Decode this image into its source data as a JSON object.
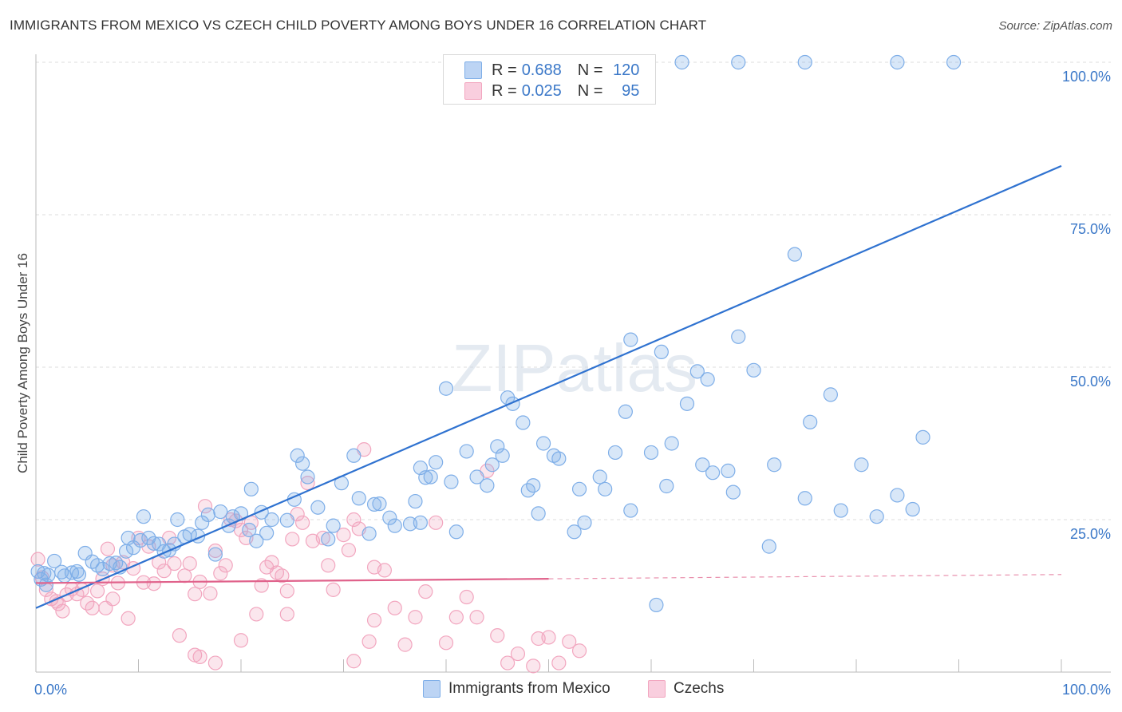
{
  "title": "IMMIGRANTS FROM MEXICO VS CZECH CHILD POVERTY AMONG BOYS UNDER 16 CORRELATION CHART",
  "source": "Source: ZipAtlas.com",
  "watermark": "ZIPatlas",
  "legend_stats": [
    {
      "r_label": "R =",
      "r": "0.688",
      "n_label": "N =",
      "n": "120"
    },
    {
      "r_label": "R =",
      "r": "0.025",
      "n_label": "N =",
      "n": "95"
    }
  ],
  "chart_data": {
    "type": "scatter",
    "title": "IMMIGRANTS FROM MEXICO VS CZECH CHILD POVERTY AMONG BOYS UNDER 16 CORRELATION CHART",
    "xlabel": "",
    "ylabel": "Child Poverty Among Boys Under 16",
    "xlim": [
      0,
      100
    ],
    "ylim": [
      0,
      100
    ],
    "x_tick_labels": [
      "0.0%",
      "100.0%"
    ],
    "y_tick_labels": [
      "25.0%",
      "50.0%",
      "75.0%",
      "100.0%"
    ],
    "y_ticks": [
      25,
      50,
      75,
      100
    ],
    "legend_position": "bottom-center",
    "series": [
      {
        "name": "Immigrants from Mexico",
        "color": "#7eaee8",
        "line_color": "#2f72d0",
        "trend": {
          "x0": 0,
          "y0": 10.5,
          "x1": 100,
          "y1": 83
        },
        "points": [
          [
            0.2,
            16.5
          ],
          [
            0.5,
            15.2
          ],
          [
            0.8,
            16.2
          ],
          [
            1.2,
            15.9
          ],
          [
            1.8,
            18.2
          ],
          [
            2.5,
            16.4
          ],
          [
            2.8,
            15.8
          ],
          [
            3.5,
            16.3
          ],
          [
            4.0,
            16.5
          ],
          [
            4.2,
            16.0
          ],
          [
            4.8,
            19.5
          ],
          [
            5.5,
            18.1
          ],
          [
            6.0,
            17.5
          ],
          [
            6.5,
            16.9
          ],
          [
            7.2,
            17.8
          ],
          [
            7.8,
            17.9
          ],
          [
            8.2,
            17.2
          ],
          [
            8.8,
            19.8
          ],
          [
            9.0,
            22.0
          ],
          [
            9.5,
            20.4
          ],
          [
            10.2,
            21.6
          ],
          [
            10.5,
            25.5
          ],
          [
            11.0,
            22.0
          ],
          [
            11.5,
            21.1
          ],
          [
            12.0,
            21.0
          ],
          [
            12.5,
            19.8
          ],
          [
            13.0,
            20.0
          ],
          [
            13.5,
            21.0
          ],
          [
            13.8,
            25.0
          ],
          [
            14.5,
            22.2
          ],
          [
            15.0,
            22.6
          ],
          [
            15.8,
            22.3
          ],
          [
            16.2,
            24.5
          ],
          [
            16.8,
            25.8
          ],
          [
            17.5,
            19.3
          ],
          [
            18.0,
            26.3
          ],
          [
            18.8,
            24.0
          ],
          [
            19.2,
            25.5
          ],
          [
            20.0,
            26.0
          ],
          [
            20.8,
            23.3
          ],
          [
            21.0,
            30.0
          ],
          [
            21.5,
            21.5
          ],
          [
            22.0,
            26.2
          ],
          [
            22.5,
            22.8
          ],
          [
            23.0,
            25.0
          ],
          [
            24.5,
            24.9
          ],
          [
            25.2,
            28.3
          ],
          [
            25.5,
            35.5
          ],
          [
            26.0,
            34.2
          ],
          [
            26.5,
            32.0
          ],
          [
            27.5,
            27.0
          ],
          [
            28.5,
            21.8
          ],
          [
            29.0,
            24.0
          ],
          [
            29.8,
            31.0
          ],
          [
            31.0,
            35.5
          ],
          [
            31.5,
            28.5
          ],
          [
            32.5,
            22.7
          ],
          [
            33.0,
            27.5
          ],
          [
            33.5,
            27.6
          ],
          [
            34.5,
            25.3
          ],
          [
            35.0,
            24.0
          ],
          [
            36.5,
            24.3
          ],
          [
            37.5,
            24.5
          ],
          [
            37.0,
            28.0
          ],
          [
            37.5,
            33.5
          ],
          [
            38.0,
            31.9
          ],
          [
            38.5,
            32.0
          ],
          [
            39.0,
            34.4
          ],
          [
            40.0,
            46.5
          ],
          [
            40.5,
            31.2
          ],
          [
            41.0,
            23.0
          ],
          [
            42.0,
            36.2
          ],
          [
            43.0,
            32.0
          ],
          [
            44.0,
            30.6
          ],
          [
            44.5,
            34.0
          ],
          [
            45.0,
            37.0
          ],
          [
            45.5,
            35.5
          ],
          [
            46.0,
            45.0
          ],
          [
            46.5,
            44.0
          ],
          [
            47.5,
            40.9
          ],
          [
            48.0,
            29.8
          ],
          [
            48.5,
            30.6
          ],
          [
            49.0,
            26.0
          ],
          [
            49.5,
            37.5
          ],
          [
            50.5,
            35.5
          ],
          [
            51.0,
            35.0
          ],
          [
            52.5,
            23.0
          ],
          [
            53.0,
            30.0
          ],
          [
            53.5,
            24.5
          ],
          [
            55.0,
            32.0
          ],
          [
            55.5,
            30.0
          ],
          [
            56.5,
            36.0
          ],
          [
            57.5,
            42.7
          ],
          [
            58.0,
            54.5
          ],
          [
            60.0,
            36.0
          ],
          [
            61.0,
            52.5
          ],
          [
            62.0,
            37.5
          ],
          [
            63.5,
            44.0
          ],
          [
            64.5,
            49.3
          ],
          [
            65.0,
            34.0
          ],
          [
            65.5,
            48.0
          ],
          [
            66.0,
            32.7
          ],
          [
            67.5,
            33.0
          ],
          [
            68.0,
            29.5
          ],
          [
            68.5,
            55.0
          ],
          [
            70.0,
            49.5
          ],
          [
            71.5,
            20.6
          ],
          [
            72.0,
            34.0
          ],
          [
            74.0,
            68.5
          ],
          [
            75.0,
            28.5
          ],
          [
            75.5,
            41.0
          ],
          [
            77.5,
            45.5
          ],
          [
            78.5,
            26.5
          ],
          [
            80.5,
            34.0
          ],
          [
            82.0,
            25.5
          ],
          [
            84.0,
            29.0
          ],
          [
            85.5,
            26.7
          ],
          [
            86.5,
            38.5
          ],
          [
            58.0,
            26.5
          ],
          [
            61.5,
            30.5
          ],
          [
            60.5,
            11.0
          ],
          [
            63.0,
            100
          ],
          [
            68.5,
            100
          ],
          [
            75.0,
            100
          ],
          [
            84.0,
            100
          ],
          [
            89.5,
            100
          ],
          [
            1.0,
            14.3
          ]
        ]
      },
      {
        "name": "Czechs",
        "color": "#f2a6bf",
        "line_color": "#e0628b",
        "trend": {
          "x0": 0,
          "y0": 14.6,
          "x1": 50,
          "y1": 15.3,
          "dashed_to_x": 100,
          "dashed_to_y": 16.0
        },
        "points": [
          [
            0.2,
            18.5
          ],
          [
            0.6,
            15.5
          ],
          [
            1.0,
            13.5
          ],
          [
            1.5,
            12.0
          ],
          [
            2.0,
            11.6
          ],
          [
            2.2,
            11.2
          ],
          [
            2.6,
            10.0
          ],
          [
            3.0,
            12.7
          ],
          [
            3.5,
            13.6
          ],
          [
            4.0,
            12.8
          ],
          [
            4.5,
            13.5
          ],
          [
            5.0,
            11.3
          ],
          [
            5.5,
            10.5
          ],
          [
            6.0,
            13.3
          ],
          [
            6.5,
            15.3
          ],
          [
            7.0,
            20.2
          ],
          [
            7.5,
            17.5
          ],
          [
            8.0,
            14.6
          ],
          [
            8.5,
            18.0
          ],
          [
            9.0,
            8.8
          ],
          [
            9.5,
            17.0
          ],
          [
            10.0,
            22.0
          ],
          [
            10.5,
            14.7
          ],
          [
            11.0,
            20.6
          ],
          [
            11.5,
            14.5
          ],
          [
            12.0,
            18.0
          ],
          [
            12.5,
            16.6
          ],
          [
            13.0,
            22.0
          ],
          [
            13.5,
            17.8
          ],
          [
            14.0,
            6.0
          ],
          [
            14.5,
            15.8
          ],
          [
            15.0,
            17.8
          ],
          [
            15.5,
            12.8
          ],
          [
            16.0,
            14.8
          ],
          [
            16.5,
            27.2
          ],
          [
            17.0,
            12.9
          ],
          [
            17.5,
            19.9
          ],
          [
            18.0,
            16.2
          ],
          [
            18.5,
            17.5
          ],
          [
            19.0,
            25.0
          ],
          [
            19.5,
            24.8
          ],
          [
            20.0,
            23.3
          ],
          [
            20.5,
            22.0
          ],
          [
            21.0,
            24.5
          ],
          [
            21.5,
            9.5
          ],
          [
            22.0,
            14.2
          ],
          [
            22.5,
            17.2
          ],
          [
            23.0,
            18.0
          ],
          [
            23.5,
            16.3
          ],
          [
            24.0,
            15.8
          ],
          [
            24.5,
            13.3
          ],
          [
            25.0,
            21.8
          ],
          [
            25.5,
            25.9
          ],
          [
            26.0,
            24.5
          ],
          [
            26.5,
            31.0
          ],
          [
            27.0,
            21.5
          ],
          [
            28.0,
            22.0
          ],
          [
            28.5,
            17.5
          ],
          [
            29.0,
            13.5
          ],
          [
            30.0,
            22.5
          ],
          [
            30.5,
            20.0
          ],
          [
            31.0,
            25.0
          ],
          [
            31.5,
            23.5
          ],
          [
            32.0,
            36.5
          ],
          [
            32.5,
            5.0
          ],
          [
            33.0,
            17.2
          ],
          [
            34.0,
            16.7
          ],
          [
            35.0,
            10.5
          ],
          [
            36.0,
            4.5
          ],
          [
            37.0,
            9.0
          ],
          [
            38.0,
            13.2
          ],
          [
            39.0,
            24.5
          ],
          [
            40.0,
            4.8
          ],
          [
            41.0,
            9.0
          ],
          [
            42.0,
            12.3
          ],
          [
            43.0,
            9.0
          ],
          [
            44.0,
            33.0
          ],
          [
            45.0,
            6.0
          ],
          [
            46.0,
            1.5
          ],
          [
            47.0,
            3.0
          ],
          [
            48.5,
            1.0
          ],
          [
            49.0,
            5.5
          ],
          [
            50.0,
            5.7
          ],
          [
            51.0,
            1.5
          ],
          [
            52.0,
            5.0
          ],
          [
            53.0,
            3.5
          ],
          [
            20.0,
            5.2
          ],
          [
            15.5,
            2.8
          ],
          [
            16.0,
            2.5
          ],
          [
            17.5,
            1.5
          ],
          [
            24.5,
            9.5
          ],
          [
            31.0,
            1.8
          ],
          [
            33.0,
            8.5
          ],
          [
            7.5,
            12.0
          ],
          [
            6.8,
            10.5
          ]
        ]
      }
    ]
  }
}
